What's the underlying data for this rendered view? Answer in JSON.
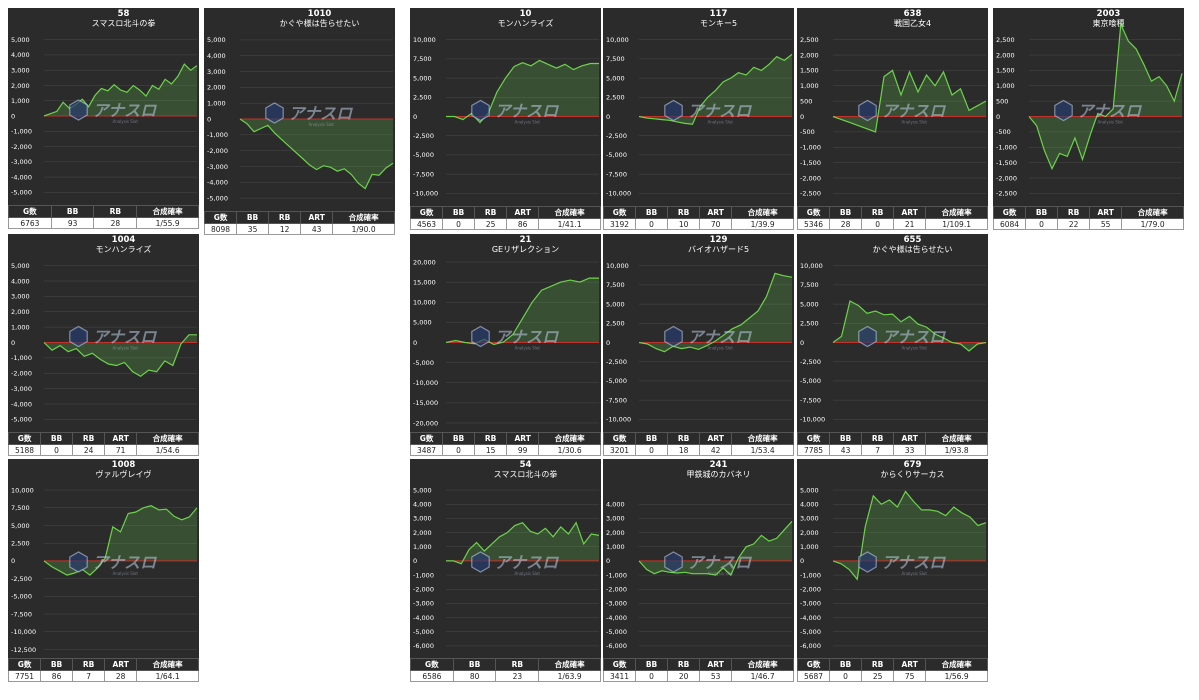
{
  "style": {
    "panel_bg": "#2b2b2b",
    "line_color": "#6cd34a",
    "fill_color": "rgba(110,210,80,0.22)",
    "zero_line": "#c0322b",
    "grid": "#4a4a4a"
  },
  "watermark": {
    "text": "アナスロ",
    "sub": "Analysis Slot",
    "icon": "hexagon-logo-icon"
  },
  "chart_data": [
    {
      "type": "area",
      "number": "58",
      "title": "スマスロ北斗の拳",
      "yticks": [
        "5,000",
        "4,000",
        "3,000",
        "2,000",
        "1,000",
        "0",
        "-1,000",
        "-2,000",
        "-3,000",
        "-4,000",
        "-5,000"
      ],
      "ylim": [
        -5500,
        5500
      ],
      "y": [
        0,
        150,
        300,
        900,
        500,
        750,
        1100,
        600,
        1350,
        1800,
        1650,
        2050,
        1700,
        1550,
        2000,
        1700,
        1300,
        2000,
        1750,
        2400,
        2100,
        2600,
        3400,
        3000,
        3300
      ],
      "headers": [
        "G数",
        "BB",
        "RB",
        "合成確率"
      ],
      "values": [
        "6763",
        "93",
        "28",
        "1/55.9"
      ]
    },
    {
      "type": "area",
      "number": "1010",
      "title": "かぐや様は告らせたい",
      "yticks": [
        "5,000",
        "4,000",
        "3,000",
        "2,000",
        "1,000",
        "0",
        "-1,000",
        "-2,000",
        "-3,000",
        "-4,000",
        "-5,000"
      ],
      "ylim": [
        -5500,
        5500
      ],
      "y": [
        0,
        -300,
        -800,
        -600,
        -400,
        -900,
        -1300,
        -1700,
        -2100,
        -2500,
        -2900,
        -3200,
        -2950,
        -3050,
        -3300,
        -3150,
        -3500,
        -4050,
        -4400,
        -3500,
        -3550,
        -3100,
        -2800
      ],
      "headers": [
        "G数",
        "BB",
        "RB",
        "ART",
        "合成確率"
      ],
      "values": [
        "8098",
        "35",
        "12",
        "43",
        "1/90.0"
      ]
    },
    {
      "type": "area",
      "number": "10",
      "title": "モンハンライズ",
      "yticks": [
        "10,000",
        "7,500",
        "5,000",
        "2,500",
        "0",
        "-2,500",
        "-5,000",
        "-7,500",
        "-10,000"
      ],
      "ylim": [
        -11000,
        11000
      ],
      "y": [
        0,
        0,
        -400,
        400,
        -800,
        500,
        3200,
        5000,
        6500,
        7000,
        6600,
        7300,
        6800,
        6300,
        6800,
        6100,
        6600,
        6900,
        6900
      ],
      "headers": [
        "G数",
        "BB",
        "RB",
        "ART",
        "合成確率"
      ],
      "values": [
        "4563",
        "0",
        "25",
        "86",
        "1/41.1"
      ]
    },
    {
      "type": "area",
      "number": "117",
      "title": "モンキー5",
      "yticks": [
        "10,000",
        "7,500",
        "5,000",
        "2,500",
        "0",
        "-2,500",
        "-5,000",
        "-7,500",
        "-10,000"
      ],
      "ylim": [
        -11000,
        11000
      ],
      "y": [
        0,
        -200,
        -300,
        -400,
        -500,
        -700,
        -900,
        -1000,
        1300,
        2500,
        3400,
        4500,
        5000,
        5700,
        5400,
        6400,
        6000,
        6800,
        7800,
        7300,
        8100
      ],
      "headers": [
        "G数",
        "BB",
        "RB",
        "ART",
        "合成確率"
      ],
      "values": [
        "3192",
        "0",
        "10",
        "70",
        "1/39.9"
      ]
    },
    {
      "type": "area",
      "number": "638",
      "title": "戦国乙女4",
      "yticks": [
        "2,500",
        "2,000",
        "1,500",
        "1,000",
        "500",
        "0",
        "-500",
        "-1,000",
        "-1,500",
        "-2,000",
        "-2,500"
      ],
      "ylim": [
        -2750,
        2750
      ],
      "y": [
        0,
        -100,
        -200,
        -300,
        -400,
        -500,
        1300,
        1500,
        700,
        1450,
        800,
        1350,
        1000,
        1450,
        700,
        900,
        200,
        350,
        500
      ],
      "headers": [
        "G数",
        "BB",
        "RB",
        "ART",
        "合成確率"
      ],
      "values": [
        "5346",
        "28",
        "0",
        "21",
        "1/109.1"
      ]
    },
    {
      "type": "area",
      "number": "2003",
      "title": "東京喰種",
      "yticks": [
        "2,500",
        "2,000",
        "1,500",
        "1,000",
        "500",
        "0",
        "-500",
        "-1,000",
        "-1,500",
        "-2,000",
        "-2,500"
      ],
      "ylim": [
        -2750,
        2750
      ],
      "y": [
        0,
        -300,
        -1100,
        -1700,
        -1200,
        -1300,
        -700,
        -1400,
        -600,
        100,
        0,
        250,
        3000,
        2450,
        2200,
        1700,
        1150,
        1300,
        1000,
        500,
        1400
      ],
      "headers": [
        "G数",
        "BB",
        "RB",
        "ART",
        "合成確率"
      ],
      "values": [
        "6084",
        "0",
        "22",
        "55",
        "1/79.0"
      ]
    },
    {
      "type": "area",
      "number": "1004",
      "title": "モンハンライズ",
      "yticks": [
        "5,000",
        "4,000",
        "3,000",
        "2,000",
        "1,000",
        "0",
        "-1,000",
        "-2,000",
        "-3,000",
        "-4,000",
        "-5,000"
      ],
      "ylim": [
        -5500,
        5500
      ],
      "y": [
        0,
        -500,
        -200,
        -600,
        -400,
        -900,
        -700,
        -1100,
        -1400,
        -1500,
        -1300,
        -1900,
        -2200,
        -1800,
        -1900,
        -1200,
        -1500,
        -100,
        500,
        500
      ],
      "headers": [
        "G数",
        "BB",
        "RB",
        "ART",
        "合成確率"
      ],
      "values": [
        "5188",
        "0",
        "24",
        "71",
        "1/54.6"
      ]
    },
    {
      "type": "area",
      "number": "21",
      "title": "GEリザレクション",
      "yticks": [
        "20,000",
        "15,000",
        "10,000",
        "5,000",
        "0",
        "-5,000",
        "-10,000",
        "-15,000",
        "-20,000"
      ],
      "ylim": [
        -21000,
        21000
      ],
      "y": [
        0,
        500,
        0,
        -300,
        800,
        -500,
        100,
        2000,
        6000,
        10000,
        13000,
        14000,
        15000,
        15500,
        15000,
        16000,
        16000
      ],
      "headers": [
        "G数",
        "BB",
        "RB",
        "ART",
        "合成確率"
      ],
      "values": [
        "3487",
        "0",
        "15",
        "99",
        "1/30.6"
      ]
    },
    {
      "type": "area",
      "number": "129",
      "title": "バイオハザード5",
      "yticks": [
        "10,000",
        "7,500",
        "5,000",
        "2,500",
        "0",
        "-2,500",
        "-5,000",
        "-7,500",
        "-10,000"
      ],
      "ylim": [
        -11000,
        11000
      ],
      "y": [
        0,
        -200,
        -800,
        -1200,
        -500,
        -800,
        -600,
        -900,
        -400,
        200,
        1000,
        1800,
        2300,
        3200,
        4100,
        6000,
        9000,
        8700,
        8500
      ],
      "headers": [
        "G数",
        "BB",
        "RB",
        "ART",
        "合成確率"
      ],
      "values": [
        "3201",
        "0",
        "18",
        "42",
        "1/53.4"
      ]
    },
    {
      "type": "area",
      "number": "655",
      "title": "かぐや様は告らせたい",
      "yticks": [
        "10,000",
        "7,500",
        "5,000",
        "2,500",
        "0",
        "-2,500",
        "-5,000",
        "-7,500",
        "-10,000"
      ],
      "ylim": [
        -11000,
        11000
      ],
      "y": [
        0,
        800,
        5400,
        4800,
        3800,
        4100,
        3600,
        3700,
        2700,
        3400,
        2400,
        2000,
        1100,
        600,
        0,
        -200,
        -1100,
        -200,
        0
      ],
      "headers": [
        "G数",
        "BB",
        "RB",
        "ART",
        "合成確率"
      ],
      "values": [
        "7785",
        "43",
        "7",
        "33",
        "1/93.8"
      ]
    },
    {
      "type": "area",
      "number": "1008",
      "title": "ヴァルヴレイヴ",
      "yticks": [
        "10,000",
        "7,500",
        "5,000",
        "2,500",
        "0",
        "-2,500",
        "-5,000",
        "-7,500",
        "-10,000",
        "-12,500"
      ],
      "ylim": [
        -13000,
        11000
      ],
      "y": [
        0,
        -800,
        -1400,
        -2000,
        -1700,
        -1200,
        -2000,
        -1000,
        400,
        4800,
        4100,
        6700,
        6900,
        7500,
        7800,
        7200,
        7300,
        6300,
        5800,
        6200,
        7500
      ],
      "headers": [
        "G数",
        "BB",
        "RB",
        "ART",
        "合成確率"
      ],
      "values": [
        "7751",
        "86",
        "7",
        "28",
        "1/64.1"
      ]
    },
    {
      "type": "area",
      "number": "54",
      "title": "スマスロ北斗の拳",
      "yticks": [
        "5,000",
        "4,000",
        "3,000",
        "2,000",
        "1,000",
        "0",
        "-1,000",
        "-2,000",
        "-3,000",
        "-4,000",
        "-5,000",
        "-6,000"
      ],
      "ylim": [
        -6500,
        5500
      ],
      "y": [
        0,
        0,
        -200,
        800,
        1300,
        700,
        1200,
        1700,
        2000,
        2500,
        2700,
        2100,
        1900,
        2300,
        1700,
        2400,
        1900,
        2700,
        1200,
        1900,
        1800
      ],
      "headers": [
        "G数",
        "BB",
        "RB",
        "合成確率"
      ],
      "values": [
        "6586",
        "80",
        "23",
        "1/63.9"
      ]
    },
    {
      "type": "area",
      "number": "241",
      "title": "甲鉄城のカバネリ",
      "yticks": [
        "4,000",
        "3,000",
        "2,000",
        "1,000",
        "0",
        "-1,000",
        "-2,000",
        "-3,000",
        "-4,000",
        "-5,000",
        "-6,000"
      ],
      "ylim": [
        -6500,
        5500
      ],
      "y": [
        0,
        -600,
        -900,
        -700,
        -800,
        -850,
        -800,
        -900,
        -900,
        -900,
        -1000,
        -500,
        -1000,
        200,
        1000,
        1200,
        1800,
        1400,
        1600,
        2200,
        2800
      ],
      "headers": [
        "G数",
        "BB",
        "RB",
        "ART",
        "合成確率"
      ],
      "values": [
        "3411",
        "0",
        "20",
        "53",
        "1/46.7"
      ]
    },
    {
      "type": "area",
      "number": "679",
      "title": "からくりサーカス",
      "yticks": [
        "5,000",
        "4,000",
        "3,000",
        "2,000",
        "1,000",
        "0",
        "-1,000",
        "-2,000",
        "-3,000",
        "-4,000",
        "-5,000",
        "-6,000"
      ],
      "ylim": [
        -6500,
        5500
      ],
      "y": [
        0,
        -200,
        -600,
        -1300,
        2400,
        4600,
        4000,
        4300,
        3800,
        4900,
        4200,
        3600,
        3600,
        3500,
        3200,
        3800,
        3400,
        3100,
        2500,
        2700
      ],
      "headers": [
        "G数",
        "BB",
        "RB",
        "ART",
        "合成確率"
      ],
      "values": [
        "5687",
        "0",
        "25",
        "75",
        "1/56.9"
      ]
    }
  ]
}
